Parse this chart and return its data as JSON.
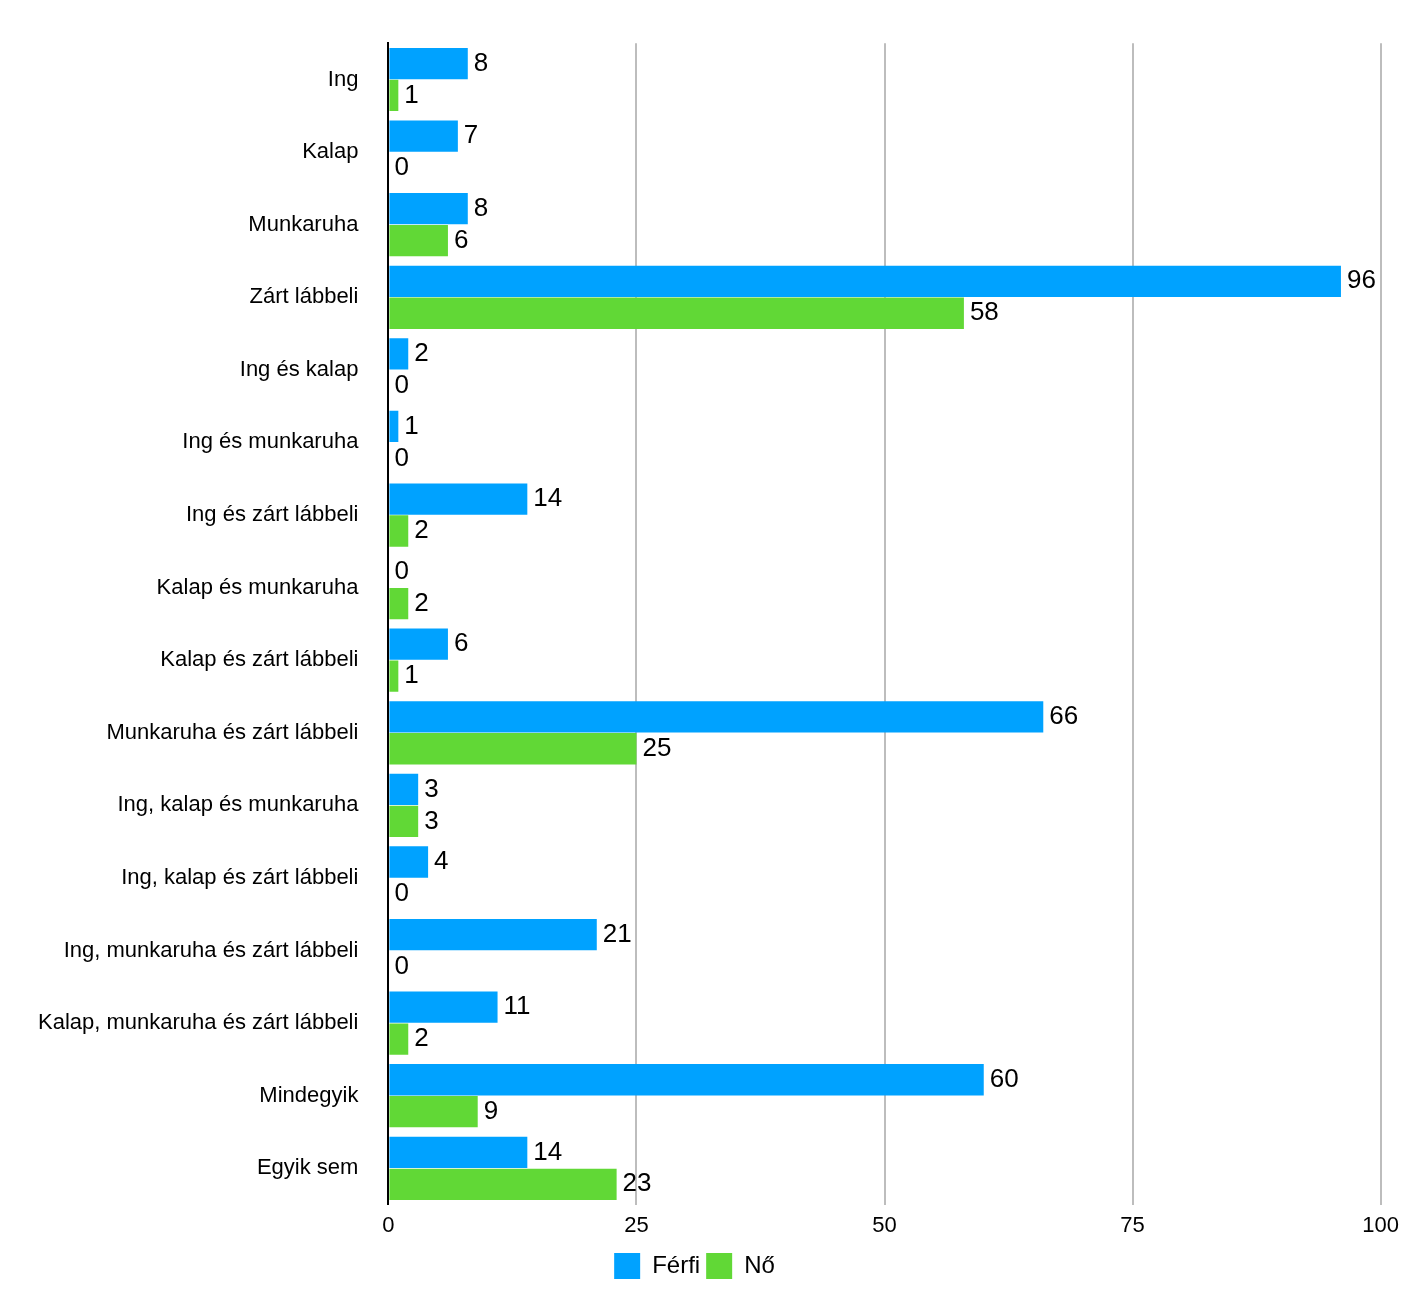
{
  "chart_data": {
    "type": "bar",
    "orientation": "horizontal",
    "categories": [
      "Ing",
      "Kalap",
      "Munkaruha",
      "Zárt lábbeli",
      "Ing és kalap",
      "Ing és munkaruha",
      "Ing és zárt lábbeli",
      "Kalap és munkaruha",
      "Kalap és zárt lábbeli",
      "Munkaruha és zárt lábbeli",
      "Ing, kalap és munkaruha",
      "Ing, kalap és zárt lábbeli",
      "Ing, munkaruha és zárt lábbeli",
      "Kalap, munkaruha és zárt lábbeli",
      "Mindegyik",
      "Egyik sem"
    ],
    "series": [
      {
        "name": "Férfi",
        "color": "#00a2ff",
        "values": [
          8,
          7,
          8,
          96,
          2,
          1,
          14,
          0,
          6,
          66,
          3,
          4,
          21,
          11,
          60,
          14
        ]
      },
      {
        "name": "Nő",
        "color": "#61d836",
        "values": [
          1,
          0,
          6,
          58,
          0,
          0,
          2,
          2,
          1,
          25,
          3,
          0,
          0,
          2,
          9,
          23
        ]
      }
    ],
    "xlim": [
      0,
      100
    ],
    "xticks": [
      0,
      25,
      50,
      75,
      100
    ],
    "grid": "x",
    "legend": "bottom",
    "data_labels": true
  }
}
